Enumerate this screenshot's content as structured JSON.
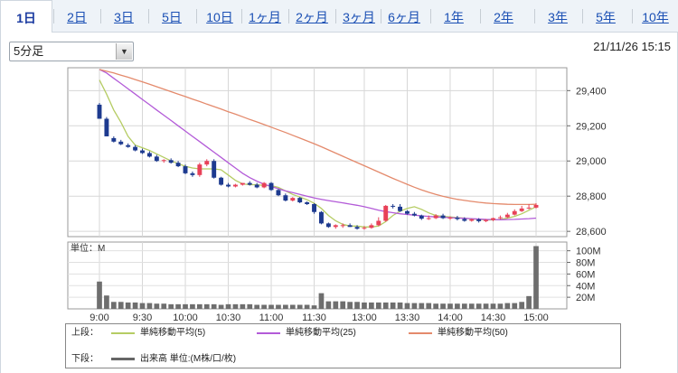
{
  "tabs": [
    {
      "label": "1日",
      "active": true
    },
    {
      "label": "2日"
    },
    {
      "label": "3日"
    },
    {
      "label": "5日"
    },
    {
      "label": "10日"
    },
    {
      "label": "1ヶ月"
    },
    {
      "label": "2ヶ月"
    },
    {
      "label": "3ヶ月"
    },
    {
      "label": "6ヶ月"
    },
    {
      "label": "1年"
    },
    {
      "label": "2年"
    },
    {
      "label": "3年"
    },
    {
      "label": "5年"
    },
    {
      "label": "10年"
    }
  ],
  "interval": {
    "selected": "5分足"
  },
  "timestamp": "21/11/26 15:15",
  "legend": {
    "upper_title": "上段：",
    "lower_title": "下段：",
    "upper": [
      {
        "label": "単純移動平均(5)",
        "color": "#b5cc63"
      },
      {
        "label": "単純移動平均(25)",
        "color": "#b35bd8"
      },
      {
        "label": "単純移動平均(50)",
        "color": "#e48a6c"
      }
    ],
    "lower": [
      {
        "label": "出来高 単位:(M株/口/枚)",
        "color": "#666666"
      }
    ]
  },
  "chart_data": {
    "type": "candlestick",
    "x": [
      "9:00",
      "9:05",
      "9:10",
      "9:15",
      "9:20",
      "9:25",
      "9:30",
      "9:35",
      "9:40",
      "9:45",
      "9:50",
      "9:55",
      "10:00",
      "10:05",
      "10:10",
      "10:15",
      "10:20",
      "10:25",
      "10:30",
      "10:35",
      "10:40",
      "10:45",
      "10:50",
      "10:55",
      "11:00",
      "11:05",
      "11:10",
      "11:15",
      "11:20",
      "11:25",
      "11:30",
      "12:30",
      "12:35",
      "12:40",
      "12:45",
      "12:50",
      "12:55",
      "13:00",
      "13:05",
      "13:10",
      "13:15",
      "13:20",
      "13:25",
      "13:30",
      "13:35",
      "13:40",
      "13:45",
      "13:50",
      "13:55",
      "14:00",
      "14:05",
      "14:10",
      "14:15",
      "14:20",
      "14:25",
      "14:30",
      "14:35",
      "14:40",
      "14:45",
      "14:50",
      "14:55",
      "15:00"
    ],
    "x_ticks": [
      "9:00",
      "9:30",
      "10:00",
      "10:30",
      "11:00",
      "11:30",
      "13:00",
      "13:30",
      "14:00",
      "14:30",
      "15:00"
    ],
    "open": [
      29320,
      29240,
      29130,
      29110,
      29090,
      29080,
      29060,
      29045,
      29025,
      29000,
      29005,
      28990,
      28970,
      28930,
      28920,
      28980,
      29000,
      28905,
      28865,
      28855,
      28865,
      28875,
      28865,
      28850,
      28875,
      28835,
      28805,
      28775,
      28790,
      28765,
      28755,
      28710,
      28645,
      28625,
      28635,
      28635,
      28625,
      28615,
      28620,
      28635,
      28660,
      28745,
      28740,
      28715,
      28700,
      28690,
      28672,
      28675,
      28690,
      28675,
      28678,
      28670,
      28660,
      28668,
      28658,
      28665,
      28675,
      28680,
      28695,
      28715,
      28730,
      28735
    ],
    "high": [
      29330,
      29250,
      29140,
      29120,
      29100,
      29090,
      29070,
      29055,
      29035,
      29010,
      29015,
      29000,
      28980,
      28940,
      28990,
      29010,
      29010,
      28910,
      28875,
      28870,
      28875,
      28885,
      28875,
      28880,
      28880,
      28840,
      28815,
      28795,
      28795,
      28770,
      28760,
      28715,
      28650,
      28640,
      28645,
      28645,
      28635,
      28630,
      28645,
      28680,
      28750,
      28755,
      28755,
      28720,
      28710,
      28695,
      28690,
      28698,
      28700,
      28685,
      28688,
      28680,
      28672,
      28675,
      28670,
      28678,
      28690,
      28705,
      28725,
      28745,
      28755,
      28760
    ],
    "low": [
      29240,
      29140,
      29105,
      29090,
      29075,
      29055,
      29040,
      29020,
      28995,
      28990,
      28985,
      28965,
      28925,
      28910,
      28910,
      28970,
      28900,
      28860,
      28850,
      28850,
      28860,
      28860,
      28845,
      28845,
      28830,
      28800,
      28770,
      28770,
      28760,
      28750,
      28700,
      28640,
      28620,
      28615,
      28620,
      28625,
      28610,
      28610,
      28615,
      28630,
      28655,
      28730,
      28710,
      28695,
      28685,
      28665,
      28665,
      28670,
      28670,
      28665,
      28662,
      28655,
      28655,
      28650,
      28652,
      28658,
      28668,
      28675,
      28690,
      28710,
      28725,
      28730
    ],
    "close": [
      29240,
      29140,
      29110,
      29095,
      29080,
      29060,
      29045,
      29025,
      29000,
      29005,
      28990,
      28970,
      28930,
      28920,
      28980,
      29000,
      28905,
      28865,
      28855,
      28865,
      28875,
      28865,
      28850,
      28875,
      28835,
      28805,
      28775,
      28790,
      28765,
      28755,
      28710,
      28645,
      28625,
      28635,
      28635,
      28625,
      28615,
      28620,
      28635,
      28660,
      28745,
      28740,
      28715,
      28700,
      28690,
      28672,
      28675,
      28690,
      28675,
      28678,
      28670,
      28660,
      28668,
      28658,
      28665,
      28675,
      28680,
      28695,
      28715,
      28730,
      28735,
      28750
    ],
    "sma": [
      {
        "name": "単純移動平均(5)",
        "color": "#b5cc63",
        "values": [
          29460,
          29380,
          29290,
          29220,
          29140,
          29090,
          29075,
          29060,
          29040,
          29020,
          29000,
          28985,
          28970,
          28960,
          28955,
          28955,
          28955,
          28950,
          28920,
          28890,
          28870,
          28865,
          28865,
          28860,
          28860,
          28850,
          28830,
          28810,
          28795,
          28780,
          28760,
          28730,
          28690,
          28660,
          28640,
          28630,
          28630,
          28625,
          28625,
          28630,
          28655,
          28690,
          28715,
          28730,
          28740,
          28725,
          28705,
          28690,
          28685,
          28682,
          28678,
          28675,
          28670,
          28668,
          28665,
          28665,
          28668,
          28675,
          28685,
          28700,
          28720,
          28740
        ]
      },
      {
        "name": "単純移動平均(25)",
        "color": "#b35bd8",
        "values": [
          29520,
          29500,
          29470,
          29440,
          29410,
          29380,
          29350,
          29320,
          29290,
          29260,
          29230,
          29200,
          29170,
          29140,
          29110,
          29080,
          29050,
          29020,
          28990,
          28960,
          28930,
          28905,
          28885,
          28868,
          28855,
          28842,
          28830,
          28820,
          28810,
          28800,
          28790,
          28782,
          28775,
          28768,
          28762,
          28755,
          28748,
          28740,
          28730,
          28720,
          28712,
          28706,
          28700,
          28696,
          28692,
          28688,
          28685,
          28682,
          28680,
          28678,
          28676,
          28674,
          28672,
          28670,
          28668,
          28667,
          28666,
          28667,
          28668,
          28670,
          28672,
          28675
        ]
      },
      {
        "name": "単純移動平均(50)",
        "color": "#e48a6c",
        "values": [
          29520,
          29510,
          29500,
          29488,
          29476,
          29463,
          29450,
          29436,
          29422,
          29408,
          29394,
          29380,
          29366,
          29352,
          29338,
          29323,
          29309,
          29295,
          29280,
          29266,
          29251,
          29236,
          29222,
          29207,
          29192,
          29177,
          29162,
          29146,
          29130,
          29114,
          29098,
          29081,
          29063,
          29045,
          29027,
          29009,
          28991,
          28973,
          28955,
          28937,
          28919,
          28901,
          28884,
          28867,
          28851,
          28836,
          28822,
          28810,
          28799,
          28790,
          28782,
          28776,
          28770,
          28765,
          28761,
          28758,
          28756,
          28754,
          28753,
          28753,
          28753,
          28754
        ]
      }
    ],
    "volume": [
      47,
      23,
      12,
      12,
      11,
      11,
      10,
      10,
      9,
      9,
      8,
      8,
      8,
      8,
      8,
      8,
      8,
      7,
      8,
      8,
      8,
      8,
      7,
      7,
      7,
      7,
      7,
      7,
      7,
      7,
      6,
      27,
      13,
      13,
      13,
      12,
      12,
      11,
      11,
      11,
      11,
      11,
      11,
      10,
      10,
      10,
      10,
      9,
      9,
      9,
      9,
      9,
      9,
      9,
      9,
      9,
      9,
      10,
      10,
      12,
      22,
      108
    ],
    "price_axis": {
      "ticks": [
        29400,
        29200,
        29000,
        28800,
        28600
      ],
      "ylim": [
        28570,
        29530
      ]
    },
    "volume_axis": {
      "unit_label": "単位：M",
      "ticks": [
        "100M",
        "80M",
        "60M",
        "40M",
        "20M"
      ],
      "tick_values": [
        100,
        80,
        60,
        40,
        20
      ],
      "ylim": [
        0,
        115
      ]
    },
    "up_color": "#e84158",
    "down_color": "#1d3a8f"
  }
}
